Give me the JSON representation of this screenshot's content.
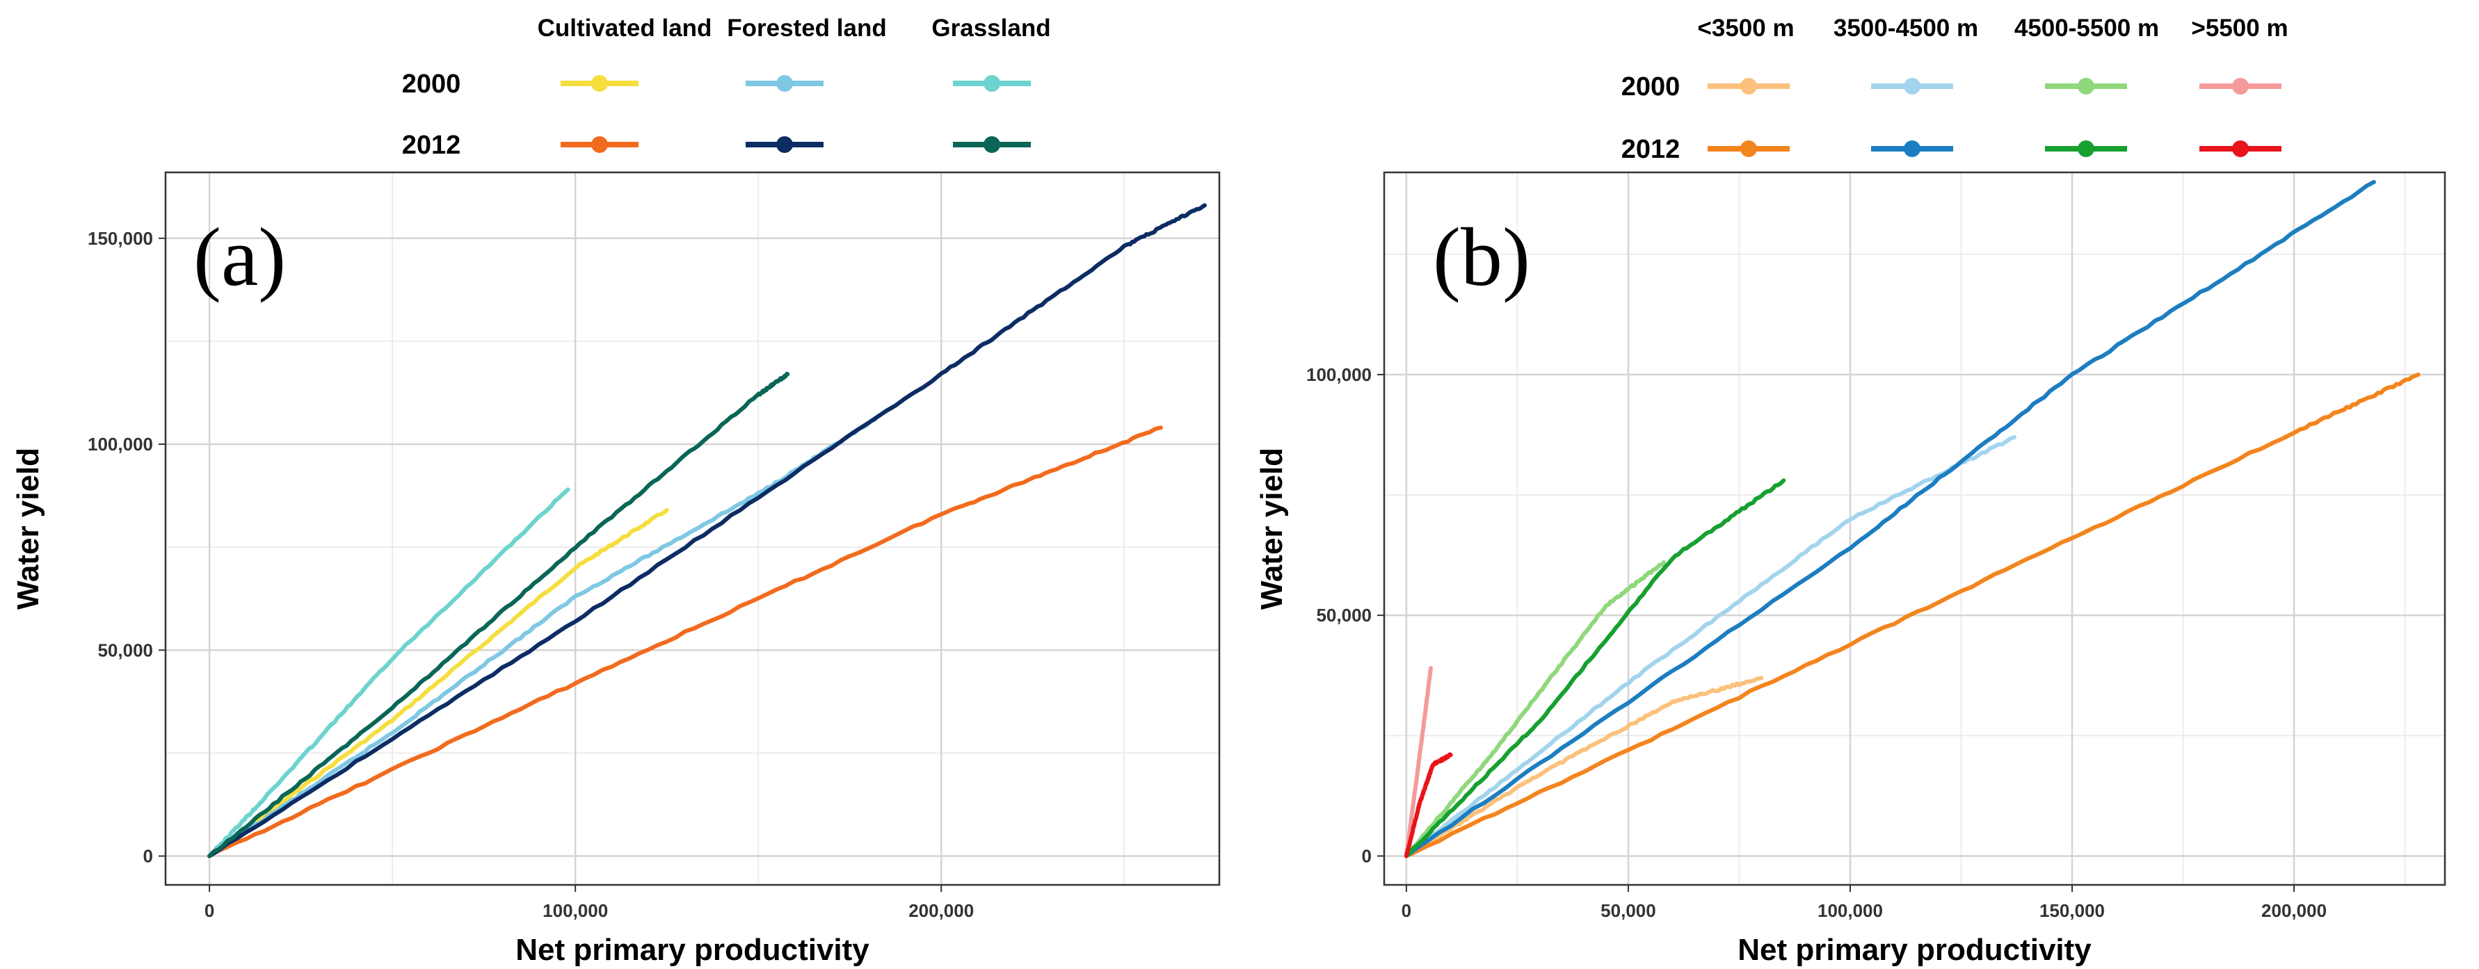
{
  "chart_data": [
    {
      "type": "line",
      "panel_label": "(a)",
      "xlabel": "Net primary productivity",
      "ylabel": "Water yield",
      "xlim": [
        -12000,
        276000
      ],
      "ylim": [
        -7000,
        166000
      ],
      "xticks": [
        0,
        100000,
        200000
      ],
      "xtick_labels": [
        "0",
        "100,000",
        "200,000"
      ],
      "yticks": [
        0,
        50000,
        100000,
        150000
      ],
      "ytick_labels": [
        "0",
        "50,000",
        "100,000",
        "150,000"
      ],
      "grid": true,
      "legend_position": "top",
      "legend": {
        "categories": [
          "Cultivated land",
          "Forested land",
          "Grassland"
        ],
        "years": [
          "2000",
          "2012"
        ],
        "colors": {
          "2000": [
            "#f5de3e",
            "#7ec8e3",
            "#6dd3ce"
          ],
          "2012": [
            "#f26b1d",
            "#0c2c64",
            "#0a6656"
          ]
        }
      },
      "series": [
        {
          "name": "Cultivated land 2000",
          "color": "#f5de3e",
          "x": [
            0,
            50000,
            100000,
            125000
          ],
          "y": [
            0,
            33000,
            70000,
            84000
          ]
        },
        {
          "name": "Forested land 2000",
          "color": "#7ec8e3",
          "x": [
            0,
            50000,
            100000,
            150000,
            182000
          ],
          "y": [
            0,
            30000,
            63000,
            88000,
            106000
          ]
        },
        {
          "name": "Grassland 2000",
          "color": "#6dd3ce",
          "x": [
            0,
            15000,
            50000,
            98000
          ],
          "y": [
            0,
            14000,
            48000,
            89000
          ]
        },
        {
          "name": "Cultivated land 2012",
          "color": "#f26b1d",
          "x": [
            0,
            100000,
            200000,
            260000
          ],
          "y": [
            0,
            42000,
            83000,
            104000
          ]
        },
        {
          "name": "Forested land 2012",
          "color": "#0c2c64",
          "x": [
            0,
            100000,
            200000,
            250000,
            272000
          ],
          "y": [
            0,
            57000,
            117000,
            148000,
            158000
          ]
        },
        {
          "name": "Grassland 2012",
          "color": "#0a6656",
          "x": [
            0,
            50000,
            100000,
            150000,
            158000
          ],
          "y": [
            0,
            36000,
            75000,
            112000,
            117000
          ]
        }
      ]
    },
    {
      "type": "line",
      "panel_label": "(b)",
      "xlabel": "Net primary productivity",
      "ylabel": "Water yield",
      "xlim": [
        -5000,
        234000
      ],
      "ylim": [
        -6000,
        142000
      ],
      "xticks": [
        0,
        50000,
        100000,
        150000,
        200000
      ],
      "xtick_labels": [
        "0",
        "50,000",
        "100,000",
        "150,000",
        "200,000"
      ],
      "yticks": [
        0,
        50000,
        100000
      ],
      "ytick_labels": [
        "0",
        "50,000",
        "100,000"
      ],
      "grid": true,
      "legend_position": "top",
      "legend": {
        "categories": [
          "<3500 m",
          "3500-4500 m",
          "4500-5500 m",
          ">5500 m"
        ],
        "years": [
          "2000",
          "2012"
        ],
        "colors": {
          "2000": [
            "#fbc17c",
            "#a3d4ee",
            "#8fd87b",
            "#f59a9a"
          ],
          "2012": [
            "#f4841c",
            "#1c7ec0",
            "#16a030",
            "#e8141c"
          ]
        }
      },
      "series": [
        {
          "name": "<3500 m 2000",
          "color": "#fbc17c",
          "x": [
            0,
            30000,
            60000,
            80000
          ],
          "y": [
            0,
            17000,
            32000,
            37000
          ]
        },
        {
          "name": "3500-4500 m 2000",
          "color": "#a3d4ee",
          "x": [
            0,
            50000,
            100000,
            137000
          ],
          "y": [
            0,
            36000,
            70000,
            87000
          ]
        },
        {
          "name": "4500-5500 m 2000",
          "color": "#8fd87b",
          "x": [
            0,
            20000,
            45000,
            58000
          ],
          "y": [
            0,
            22000,
            52000,
            61000
          ]
        },
        {
          "name": ">5500 m 2000",
          "color": "#f59a9a",
          "x": [
            0,
            2000,
            4000,
            5500
          ],
          "y": [
            0,
            14000,
            28000,
            39000
          ]
        },
        {
          "name": "<3500 m 2012",
          "color": "#f4841c",
          "x": [
            0,
            100000,
            200000,
            228000
          ],
          "y": [
            0,
            44000,
            88000,
            100000
          ]
        },
        {
          "name": "3500-4500 m 2012",
          "color": "#1c7ec0",
          "x": [
            0,
            100000,
            150000,
            218000
          ],
          "y": [
            0,
            64000,
            100000,
            140000
          ]
        },
        {
          "name": "4500-5500 m 2012",
          "color": "#16a030",
          "x": [
            0,
            30000,
            60000,
            85000
          ],
          "y": [
            0,
            28000,
            62000,
            78000
          ]
        },
        {
          "name": ">5500 m 2012",
          "color": "#e8141c",
          "x": [
            0,
            3000,
            6000,
            10000
          ],
          "y": [
            0,
            11000,
            19000,
            21000
          ]
        }
      ]
    }
  ]
}
